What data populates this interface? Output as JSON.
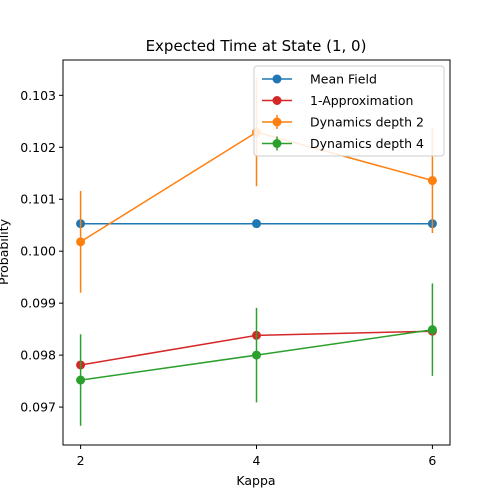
{
  "chart_data": {
    "type": "line",
    "title": "Expected Time at State (1, 0)",
    "xlabel": "Kappa",
    "ylabel": "Probability",
    "x": [
      2,
      4,
      6
    ],
    "xticks": [
      2,
      4,
      6
    ],
    "xlim": [
      1.8,
      6.2
    ],
    "ylim": [
      0.09627,
      0.10368
    ],
    "yticks": [
      0.097,
      0.098,
      0.099,
      0.1,
      0.101,
      0.102,
      0.103
    ],
    "ytick_labels": [
      "0.097",
      "0.098",
      "0.099",
      "0.100",
      "0.101",
      "0.102",
      "0.103"
    ],
    "grid": false,
    "legend_position": "top-right",
    "series": [
      {
        "name": "Mean Field",
        "color": "#1f77b4",
        "values": [
          0.10053,
          0.10053,
          0.10053
        ]
      },
      {
        "name": "1-Approximation",
        "color": "#d62728",
        "values": [
          0.09781,
          0.09838,
          0.09846
        ]
      },
      {
        "name": "Dynamics depth 2",
        "color": "#ff7f0e",
        "values": [
          0.10018,
          0.10229,
          0.10136
        ],
        "errors": [
          0.00098,
          0.00104,
          0.00101
        ]
      },
      {
        "name": "Dynamics depth 4",
        "color": "#2ca02c",
        "values": [
          0.09752,
          0.098,
          0.09849
        ],
        "errors": [
          0.00088,
          0.00091,
          0.00089
        ]
      }
    ]
  }
}
